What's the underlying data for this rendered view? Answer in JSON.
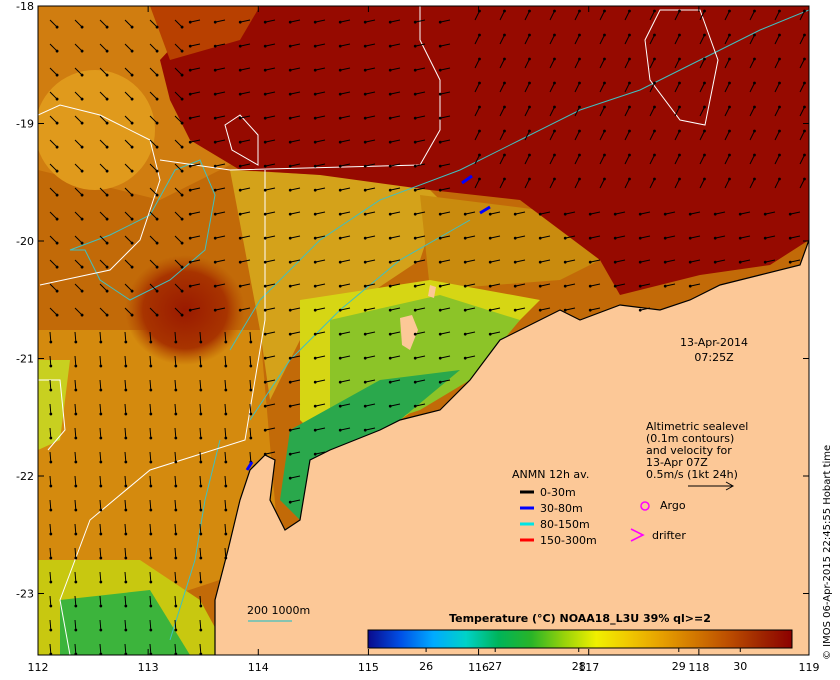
{
  "map": {
    "lon_ticks": [
      "112",
      "113",
      "114",
      "115",
      "116",
      "117",
      "118",
      "119"
    ],
    "lat_ticks": [
      "-18",
      "-19",
      "-20",
      "-21",
      "-22",
      "-23"
    ],
    "date": "13-Apr-2014",
    "time": "07:25Z"
  },
  "sealevel_note": {
    "lines": [
      "Altimetric sealevel",
      "(0.1m contours)",
      "and velocity for",
      "13-Apr 07Z",
      "0.5m/s (1kt 24h)"
    ]
  },
  "anmn_legend": {
    "title": "ANMN 12h av.",
    "items": [
      {
        "label": "0-30m",
        "color": "#000000"
      },
      {
        "label": "30-80m",
        "color": "#0000ff"
      },
      {
        "label": "80-150m",
        "color": "#00e5e5"
      },
      {
        "label": "150-300m",
        "color": "#ff0000"
      }
    ]
  },
  "markers": {
    "argo": "Argo",
    "argo_color": "#ff00ff",
    "drifter": "drifter",
    "drifter_color": "#ff00ff"
  },
  "bathymetry": {
    "label": "200 1000m",
    "color": "#40c0c0"
  },
  "colorbar": {
    "title": "Temperature (°C) NOAA18_L3U 39% ql>=2",
    "ticks": [
      "26",
      "27",
      "28",
      "29",
      "30"
    ],
    "colors": [
      "#0a0a8c",
      "#0050e6",
      "#00aaff",
      "#00d2c8",
      "#00b45a",
      "#28b428",
      "#96d20a",
      "#f0f000",
      "#f0c800",
      "#e6a000",
      "#d27800",
      "#be5000",
      "#a02800",
      "#8c0000"
    ]
  },
  "credit": "© IMOS 06-Apr-2015 22:45:55 Hobart time"
}
